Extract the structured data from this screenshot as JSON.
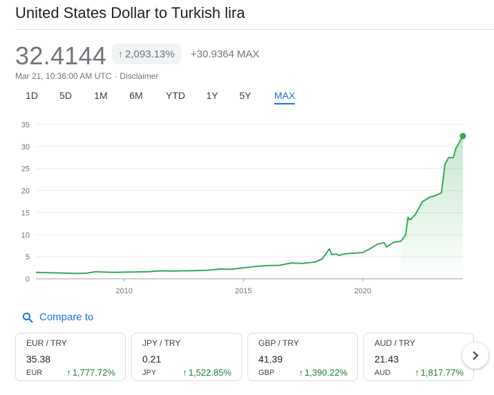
{
  "header": {
    "title": "United States Dollar to Turkish lira"
  },
  "quote": {
    "price": "32.4144",
    "percent_change": "2,093.13%",
    "percent_arrow": "↑",
    "absolute_change": "+30.9364",
    "range_label": "MAX",
    "timestamp": "Mar 21, 10:36:00 AM UTC",
    "separator": "·",
    "disclaimer": "Disclaimer"
  },
  "ranges": [
    "1D",
    "5D",
    "1M",
    "6M",
    "YTD",
    "1Y",
    "5Y",
    "MAX"
  ],
  "active_range": "MAX",
  "colors": {
    "line": "#34a853",
    "positive": "#188038",
    "accent": "#1a73e8"
  },
  "chart_data": {
    "type": "line",
    "series": [
      {
        "x": [
          2006.3,
          2007.0,
          2007.5,
          2008.0,
          2008.4,
          2008.8,
          2009.2,
          2009.6,
          2010.0,
          2010.5,
          2011.0,
          2011.5,
          2012.0,
          2012.5,
          2013.0,
          2013.5,
          2014.0,
          2014.5,
          2015.0,
          2015.5,
          2016.0,
          2016.5,
          2017.0,
          2017.5,
          2018.0,
          2018.3,
          2018.6,
          2018.7,
          2018.9,
          2019.0,
          2019.3,
          2019.6,
          2020.0,
          2020.3,
          2020.6,
          2020.9,
          2021.0,
          2021.3,
          2021.6,
          2021.8,
          2021.9,
          2021.95,
          2022.0,
          2022.2,
          2022.5,
          2022.8,
          2023.0,
          2023.3,
          2023.45,
          2023.6,
          2023.8,
          2023.9,
          2024.0,
          2024.2
        ],
        "y": [
          1.45,
          1.35,
          1.3,
          1.2,
          1.25,
          1.6,
          1.5,
          1.45,
          1.5,
          1.55,
          1.6,
          1.8,
          1.75,
          1.8,
          1.85,
          1.95,
          2.2,
          2.15,
          2.5,
          2.8,
          3.0,
          3.05,
          3.6,
          3.5,
          3.8,
          4.5,
          6.8,
          5.5,
          5.6,
          5.3,
          5.7,
          5.8,
          5.95,
          6.8,
          7.8,
          8.2,
          7.2,
          8.3,
          8.5,
          10.0,
          14.0,
          13.5,
          13.4,
          14.5,
          17.5,
          18.5,
          18.8,
          19.5,
          26.0,
          27.5,
          27.5,
          29.5,
          30.5,
          32.4
        ]
      }
    ],
    "x_ticks": [
      2010,
      2015,
      2020
    ],
    "y_ticks": [
      0,
      5,
      10,
      15,
      20,
      25,
      30,
      35
    ],
    "xlim": [
      2006.3,
      2024.2
    ],
    "ylim": [
      0,
      35
    ],
    "grid": true,
    "gradient_fill": true
  },
  "compare": {
    "label": "Compare to"
  },
  "cards": [
    {
      "pair": "EUR / TRY",
      "rate": "35.38",
      "base": "EUR",
      "arrow": "↑",
      "change": "1,777.72%"
    },
    {
      "pair": "JPY / TRY",
      "rate": "0.21",
      "base": "JPY",
      "arrow": "↑",
      "change": "1,522.85%"
    },
    {
      "pair": "GBP / TRY",
      "rate": "41.39",
      "base": "GBP",
      "arrow": "↑",
      "change": "1,390.22%"
    },
    {
      "pair": "AUD / TRY",
      "rate": "21.43",
      "base": "AUD",
      "arrow": "↑",
      "change": "1,817.77%"
    }
  ]
}
